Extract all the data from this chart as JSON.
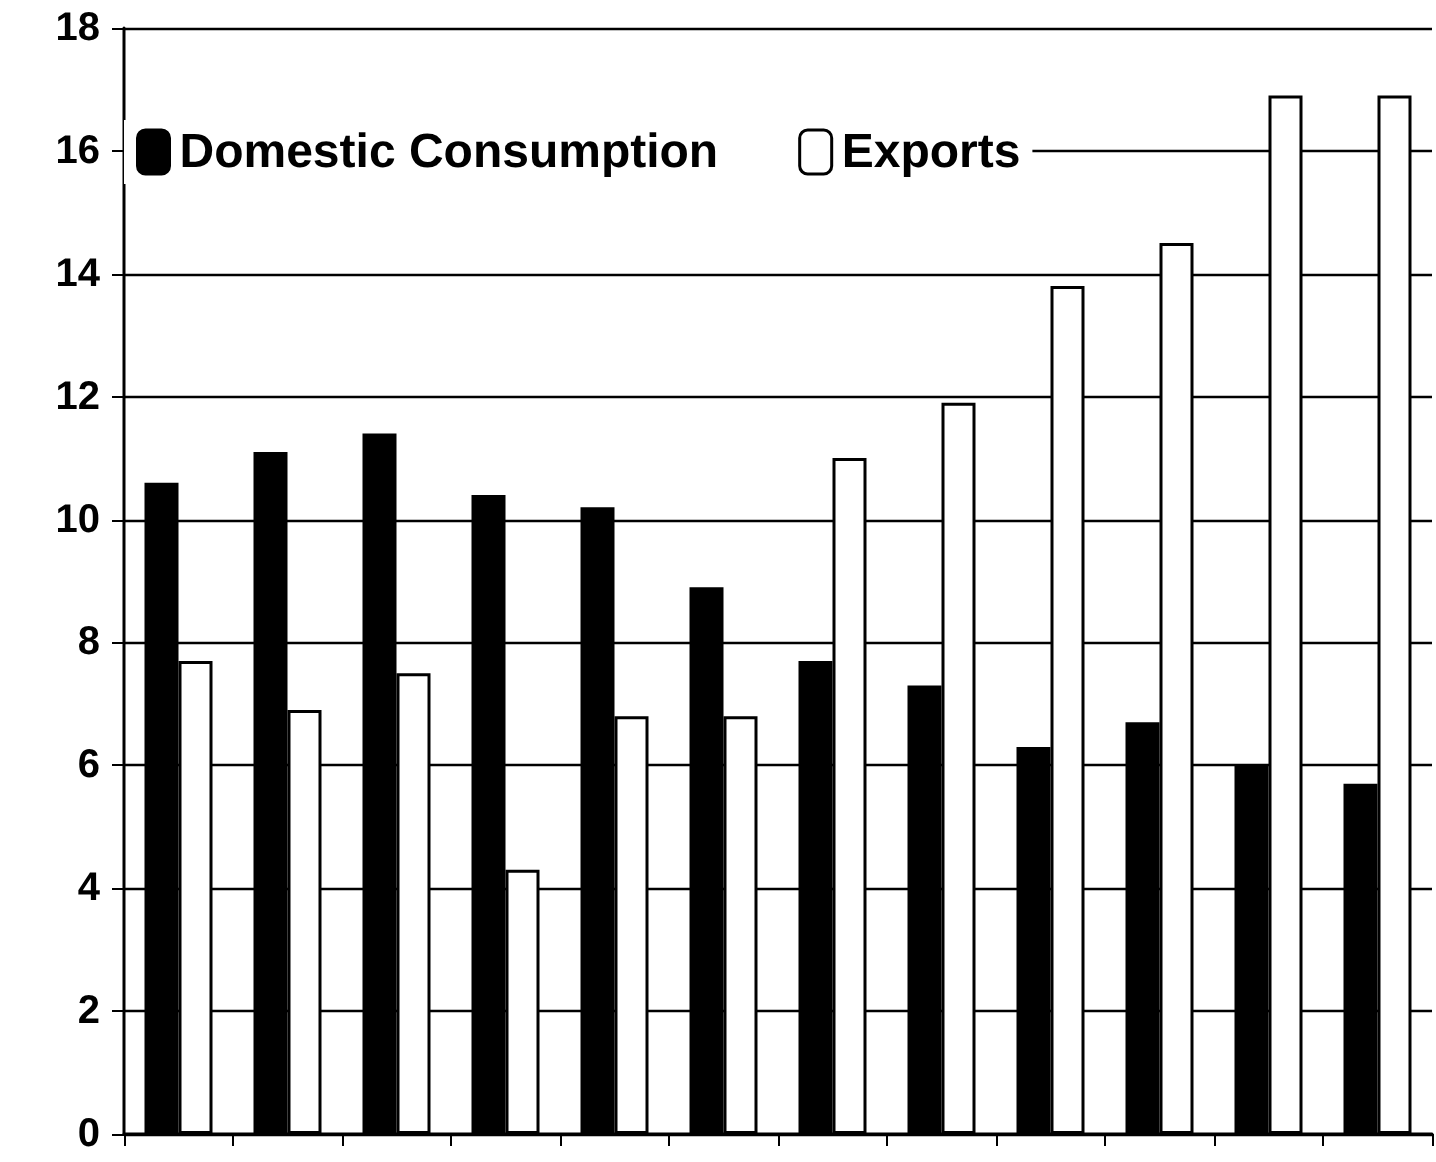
{
  "chart_data": {
    "type": "bar",
    "categories": [
      null,
      null,
      null,
      null,
      null,
      null,
      null,
      null,
      null,
      null,
      null,
      null
    ],
    "series": [
      {
        "name": "Domestic Consumption",
        "color": "#000000",
        "values": [
          10.6,
          11.1,
          11.4,
          10.4,
          10.2,
          8.9,
          7.7,
          7.3,
          6.3,
          6.7,
          6.0,
          5.7
        ]
      },
      {
        "name": "Exports",
        "color": "#ffffff",
        "values": [
          7.7,
          6.9,
          7.5,
          4.3,
          6.8,
          6.8,
          11.0,
          11.9,
          13.8,
          14.5,
          16.9,
          16.9
        ]
      }
    ],
    "ylim": [
      0,
      18
    ],
    "yticks": [
      0,
      2,
      4,
      6,
      8,
      10,
      12,
      14,
      16,
      18
    ],
    "grid": "y",
    "legend": "top left"
  }
}
